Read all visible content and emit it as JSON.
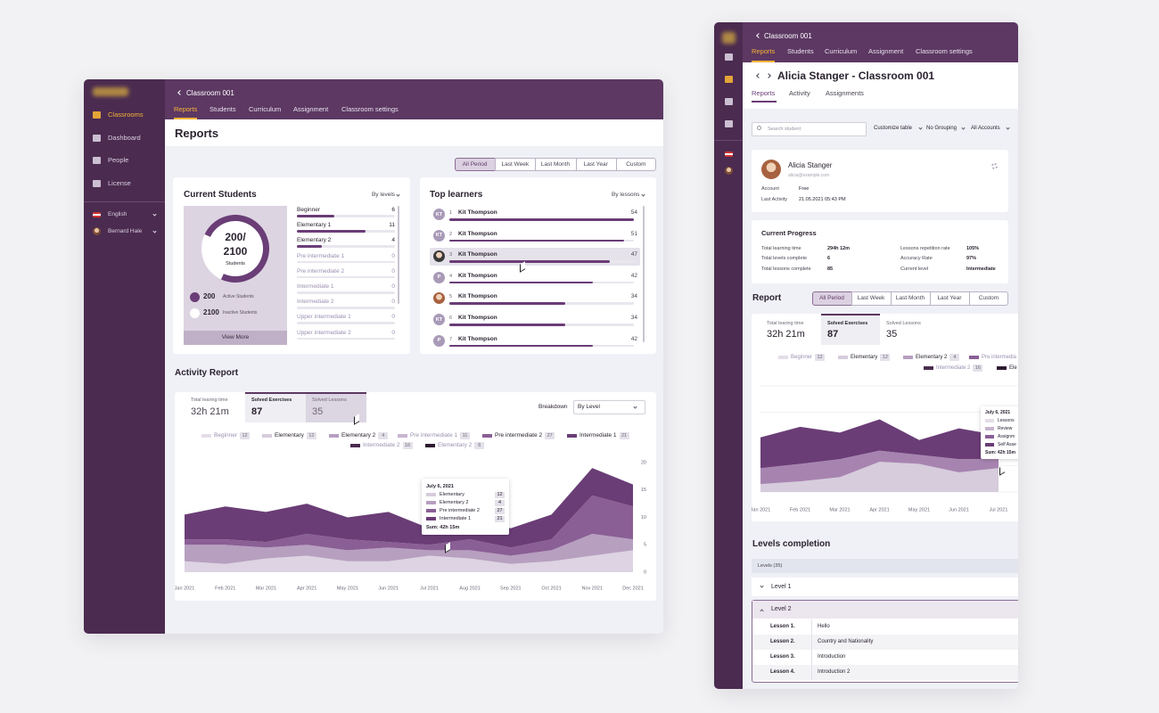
{
  "left": {
    "sidebar": {
      "items": [
        "Classrooms",
        "Dashboard",
        "People",
        "License"
      ],
      "language": "English",
      "user": "Bernard Hale"
    },
    "header": {
      "back": "Classroom 001",
      "tabs": [
        "Reports",
        "Students",
        "Curriculum",
        "Assignment",
        "Classroom settings"
      ]
    },
    "page_title": "Reports",
    "periods": [
      "All Period",
      "Last Week",
      "Last Month",
      "Last Year",
      "Custom"
    ],
    "current_students": {
      "title": "Current Students",
      "filter": "By levels",
      "donut_top": "200/",
      "donut_bottom": "2100",
      "donut_caption": "Students",
      "legend": [
        {
          "value": 200,
          "label": "Active Students"
        },
        {
          "value": 2100,
          "label": "Inactive Students"
        }
      ],
      "levels": [
        {
          "name": "Beginner",
          "count": 6
        },
        {
          "name": "Elementary 1",
          "count": 11
        },
        {
          "name": "Elementary 2",
          "count": 4
        },
        {
          "name": "Pre intermediate 1",
          "count": 0
        },
        {
          "name": "Pre intermediate 2",
          "count": 0
        },
        {
          "name": "Intermediate 1",
          "count": 0
        },
        {
          "name": "Intermediate 2",
          "count": 0
        },
        {
          "name": "Upper intermediate 1",
          "count": 0
        },
        {
          "name": "Upper intermediate 2",
          "count": 0
        }
      ],
      "more": "View More"
    },
    "top_learners": {
      "title": "Top learners",
      "filter": "By lessons",
      "rows": [
        {
          "avatar": "KT",
          "rank": 1,
          "name": "Kit Thompson",
          "value": 54
        },
        {
          "avatar": "KT",
          "rank": 2,
          "name": "Kit Thompson",
          "value": 51
        },
        {
          "rank": 3,
          "name": "Kit Thompson",
          "value": 47
        },
        {
          "avatar": "P",
          "rank": 4,
          "name": "Kit Thompson",
          "value": 42
        },
        {
          "rank": 5,
          "name": "Kit Thompson",
          "value": 34
        },
        {
          "avatar": "KT",
          "rank": 6,
          "name": "Kit Thompson",
          "value": 34
        },
        {
          "avatar": "P",
          "rank": 7,
          "name": "Kit Thompson",
          "value": 42
        }
      ]
    },
    "activity": {
      "title": "Activity Report",
      "stats": [
        {
          "label": "Total learing time",
          "value": "32h 21m"
        },
        {
          "label": "Solved Exercises",
          "value": 87
        },
        {
          "label": "Solved Lessons",
          "value": 35
        }
      ],
      "breakdown_label": "Breakdown",
      "breakdown": "By Level",
      "legend": [
        {
          "name": "Beginner",
          "count": 12,
          "color": "#e4dde8"
        },
        {
          "name": "Elementary",
          "count": 12,
          "color": "#d6ccdc"
        },
        {
          "name": "Elementary 2",
          "count": 4,
          "color": "#b79fc0"
        },
        {
          "name": "Pre intermediate 1",
          "count": 11,
          "color": "#c8b5cf"
        },
        {
          "name": "Pre intermediate 2",
          "count": 27,
          "color": "#8a5f95"
        },
        {
          "name": "Intermediate 1",
          "count": 21,
          "color": "#6a3d76"
        },
        {
          "name": "Intermediate 2",
          "count": 16,
          "color": "#4b2b50"
        },
        {
          "name": "Elementary 2",
          "count": 6,
          "color": "#2d1b30"
        }
      ],
      "chart_data": {
        "type": "area",
        "categories": [
          "Jan 2021",
          "Feb 2021",
          "Mar 2021",
          "Apr 2021",
          "May 2021",
          "Jun 2021",
          "Jul 2021",
          "Aug 2021",
          "Sep 2021",
          "Oct 2021",
          "Nov 2021",
          "Dec 2021"
        ],
        "ylim": [
          0,
          20
        ],
        "yticks": [
          0,
          5,
          10,
          15,
          20
        ],
        "grid": false,
        "series": [
          {
            "color": "#ddd3e2",
            "values": [
              2,
              1.5,
              2.5,
              3,
              2,
              2,
              3,
              2.5,
              1.5,
              2,
              3,
              4
            ]
          },
          {
            "color": "#b79fc0",
            "values": [
              3,
              3.5,
              2,
              2,
              2,
              2.5,
              1,
              1.5,
              1.5,
              2,
              4,
              2
            ]
          },
          {
            "color": "#8a5f95",
            "values": [
              1,
              1,
              1,
              2,
              2,
              1,
              1,
              2,
              1.5,
              2,
              7,
              6
            ]
          },
          {
            "color": "#6a3d76",
            "values": [
              4.5,
              6,
              5.5,
              5.5,
              4,
              5.5,
              3,
              3.5,
              3.5,
              4.5,
              5,
              4
            ]
          }
        ]
      },
      "tooltip": {
        "date": "July 6, 2021",
        "rows": [
          {
            "name": "Elementary",
            "value": 12,
            "color": "#d6ccdc"
          },
          {
            "name": "Elementary 2",
            "value": 4,
            "color": "#b79fc0"
          },
          {
            "name": "Pre intermediate 2",
            "value": 27,
            "color": "#8a5f95"
          },
          {
            "name": "Intermediate 1",
            "value": 21,
            "color": "#6a3d76"
          }
        ],
        "sum": "Sum: 42h 15m"
      }
    }
  },
  "right": {
    "header": {
      "back": "Classroom 001",
      "tabs": [
        "Reports",
        "Students",
        "Curriculum",
        "Assignment",
        "Classroom settings"
      ]
    },
    "page_title": "Alicia Stanger - Classroom 001",
    "subtabs": [
      "Reports",
      "Activity",
      "Assignments"
    ],
    "search": "Search student",
    "toolbar": [
      "Customize table",
      "No Grouping",
      "All Accounts"
    ],
    "profile": {
      "name": "Alicia Stanger",
      "email": "alicia@example.com",
      "fields": [
        {
          "label": "Account",
          "value": "Free"
        },
        {
          "label": "Last Activity",
          "value": "21.05.2021 05:43 PM"
        }
      ]
    },
    "progress": {
      "title": "Current Progress",
      "left": [
        {
          "label": "Total learning time",
          "value": "294h 12m"
        },
        {
          "label": "Total levels complete",
          "value": 6
        },
        {
          "label": "Total lessons complete",
          "value": 85
        }
      ],
      "right": [
        {
          "label": "Lessons repetition rate",
          "value": "105%"
        },
        {
          "label": "Accuracy Rate",
          "value": "97%"
        },
        {
          "label": "Current level",
          "value": "Intermediate"
        }
      ]
    },
    "report": {
      "title": "Report",
      "periods": [
        "All Period",
        "Last Week",
        "Last Month",
        "Last Year",
        "Custom"
      ],
      "stats": [
        {
          "label": "Total learing time",
          "value": "32h 21m"
        },
        {
          "label": "Solved Exercises",
          "value": 87
        },
        {
          "label": "Solved Lessons",
          "value": 35
        }
      ],
      "legend": [
        {
          "name": "Beginner",
          "count": 12,
          "color": "#e4dde8"
        },
        {
          "name": "Elementary",
          "count": 12,
          "color": "#d6ccdc"
        },
        {
          "name": "Elementary 2",
          "count": 4,
          "color": "#b79fc0"
        },
        {
          "name": "Pre intermedia",
          "color": "#8a5f95"
        },
        {
          "name": "Intermediate 2",
          "count": 16,
          "color": "#4b2b50"
        },
        {
          "name": "Ele",
          "color": "#2d1b30"
        }
      ],
      "chart_data": {
        "type": "area",
        "categories": [
          "Jan 2021",
          "Feb 2021",
          "Mar 2021",
          "Apr 2021",
          "May 2021",
          "Jun 2021",
          "Jul 2021"
        ],
        "ylim": [
          0,
          20
        ],
        "yticks": [
          0,
          5,
          10,
          15,
          20
        ],
        "grid": true,
        "series": [
          {
            "color": "#d6ccdc",
            "values": [
              1.5,
              2,
              2.8,
              5.7,
              5.3,
              3.7,
              4.5
            ]
          },
          {
            "color": "#a784b0",
            "values": [
              3,
              3.3,
              3.4,
              2.1,
              1.7,
              2.5,
              1.7
            ]
          },
          {
            "color": "#6a3d76",
            "values": [
              5.8,
              7,
              5,
              5.9,
              2.8,
              5.8,
              4.5
            ]
          }
        ]
      },
      "tooltip": {
        "date": "July 6, 2021",
        "rows": [
          {
            "name": "Lessons",
            "color": "#e4dde8"
          },
          {
            "name": "Review",
            "color": "#c8b5cf"
          },
          {
            "name": "Assignm",
            "color": "#8a5f95"
          },
          {
            "name": "Self Asse",
            "color": "#6a3d76"
          }
        ],
        "sum": "Sum: 42h 15m"
      }
    },
    "levels": {
      "title": "Levels completion",
      "header": "Levels (35)",
      "items": [
        "Level 1",
        "Level 2"
      ],
      "lessons": [
        {
          "label": "Lesson 1.",
          "title": "Hello"
        },
        {
          "label": "Lesson 2.",
          "title": "Country and Nationality"
        },
        {
          "label": "Lesson 3.",
          "title": "Introduction"
        },
        {
          "label": "Lesson 4.",
          "title": "Introduction 2"
        }
      ]
    }
  }
}
